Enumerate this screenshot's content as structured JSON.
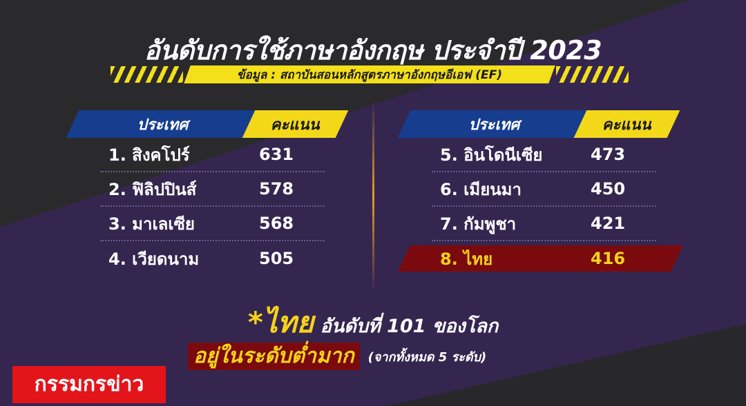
{
  "title": "อันดับการใช้ภาษาอังกฤษ ประจำปี 2023",
  "source": "ข้อมูล : สถาบันสอนหลักสูตรภาษาอังกฤษอีเอฟ (EF)",
  "headers": {
    "country": "ประเทศ",
    "score": "คะแนน"
  },
  "left": [
    {
      "country": "1. สิงคโปร์",
      "score": "631"
    },
    {
      "country": "2. ฟิลิปปินส์",
      "score": "578"
    },
    {
      "country": "3. มาเลเซีย",
      "score": "568"
    },
    {
      "country": "4. เวียดนาม",
      "score": "505"
    }
  ],
  "right": [
    {
      "country": "5. อินโดนีเซีย",
      "score": "473"
    },
    {
      "country": "6. เมียนมา",
      "score": "450"
    },
    {
      "country": "7. กัมพูชา",
      "score": "421"
    },
    {
      "country": "8. ไทย",
      "score": "416"
    }
  ],
  "footer": {
    "thai": "*ไทย",
    "rank": "อันดับที่ 101 ของโลก",
    "level": "อยู่ในระดับต่ำมาก",
    "note": "(จากทั้งหมด 5 ระดับ)"
  },
  "brand": "กรรมกรข่าว",
  "colors": {
    "background": "#352650",
    "accent_yellow": "#f3d81a",
    "header_blue": "#173d8f",
    "highlight_red": "#7a0a0e",
    "brand_red": "#e4141b"
  }
}
